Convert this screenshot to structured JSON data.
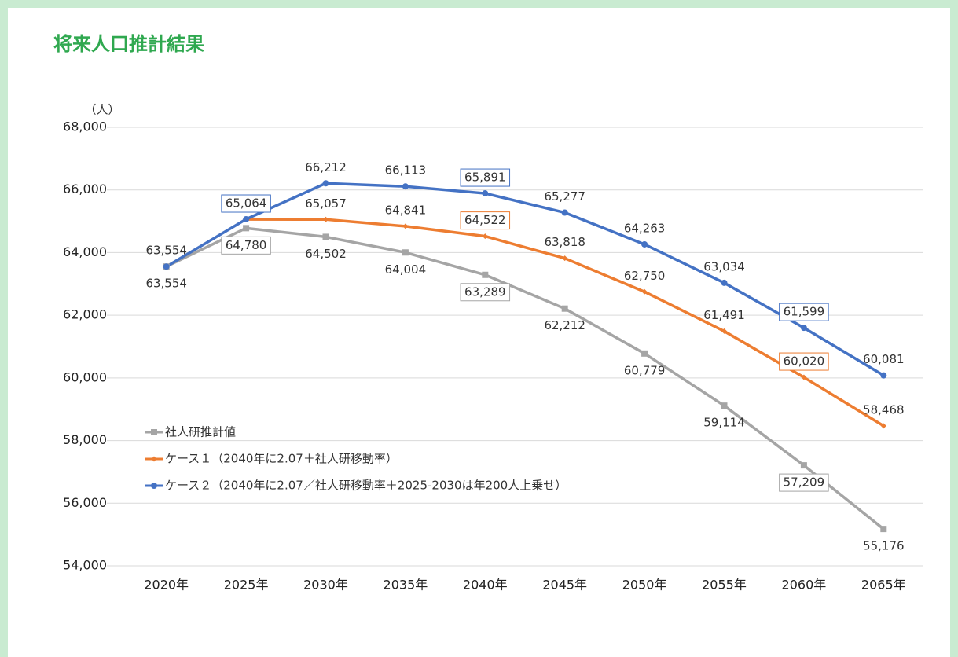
{
  "title": "将来人口推計結果",
  "chart_data": {
    "type": "line",
    "y_unit": "（人）",
    "categories": [
      "2020年",
      "2025年",
      "2030年",
      "2035年",
      "2040年",
      "2045年",
      "2050年",
      "2055年",
      "2060年",
      "2065年"
    ],
    "ylim": [
      54000,
      68000
    ],
    "yticks": [
      {
        "value": 54000,
        "label": "54,000"
      },
      {
        "value": 56000,
        "label": "56,000"
      },
      {
        "value": 58000,
        "label": "58,000"
      },
      {
        "value": 60000,
        "label": "60,000"
      },
      {
        "value": 62000,
        "label": "62,000"
      },
      {
        "value": 64000,
        "label": "64,000"
      },
      {
        "value": 66000,
        "label": "66,000"
      },
      {
        "value": 68000,
        "label": "68,000"
      }
    ],
    "grid": true,
    "legend": "lower-left",
    "series": [
      {
        "name": "社人研推計値",
        "color": "#a5a5a5",
        "marker": "square",
        "values": [
          63554,
          64780,
          64502,
          64004,
          63289,
          62212,
          60779,
          59114,
          57209,
          55176
        ],
        "value_labels": [
          "63,554",
          "64,780",
          "64,502",
          "64,004",
          "63,289",
          "62,212",
          "60,779",
          "59,114",
          "57,209",
          "55,176"
        ]
      },
      {
        "name": "ケース１（2040年に2.07＋社人研移動率）",
        "color": "#ed7d31",
        "marker": "diamond",
        "values": [
          null,
          65060,
          65057,
          64841,
          64522,
          63818,
          62750,
          61491,
          60020,
          58468
        ],
        "value_labels": [
          null,
          null,
          "65,057",
          "64,841",
          "64,522",
          "63,818",
          "62,750",
          "61,491",
          "60,020",
          "58,468"
        ]
      },
      {
        "name": "ケース２（2040年に2.07／社人研移動率＋2025-2030は年200人上乗せ）",
        "color": "#4472c4",
        "marker": "circle",
        "values": [
          63554,
          65064,
          66212,
          66113,
          65891,
          65277,
          64263,
          63034,
          61599,
          60081
        ],
        "value_labels": [
          "63,554",
          "65,064",
          "66,212",
          "66,113",
          "65,891",
          "65,277",
          "64,263",
          "63,034",
          "61,599",
          "60,081"
        ]
      }
    ]
  }
}
